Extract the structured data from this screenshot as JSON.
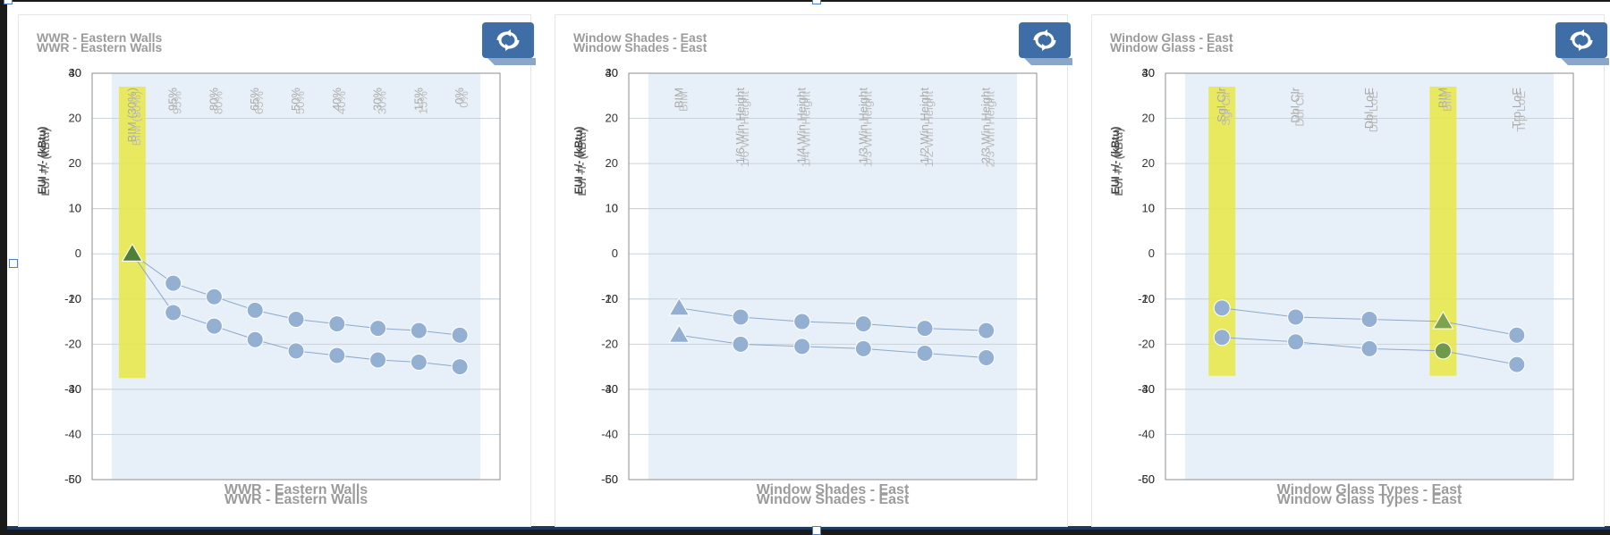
{
  "colors": {
    "plot_band": "#e7f0f8",
    "point": "#93b0d3",
    "highlight": "#e9e84f",
    "baseline_marker": "#4f7f3b",
    "button": "#3f6ea6"
  },
  "icons": {
    "panel_button": "refresh-cycle-icon"
  },
  "chart_data": [
    {
      "type": "scatter",
      "title": "WWR - Eastern Walls",
      "xlabel": "WWR - Eastern Walls",
      "ylabel": "EUI +/- (kBtu)",
      "ylim_left": [
        -50,
        40
      ],
      "ylim_right": [
        -60,
        30
      ],
      "yticks_left": [
        40,
        20,
        10,
        0,
        -10,
        -20,
        -30,
        -40,
        -50
      ],
      "yticks_right": [
        30,
        20,
        0,
        -20,
        -40,
        -60
      ],
      "categories": [
        "BIM (30%)",
        "95%",
        "80%",
        "65%",
        "50%",
        "40%",
        "30%",
        "15%",
        "0%"
      ],
      "highlight_categories": [
        0
      ],
      "series": [
        {
          "values": [
            0,
            -6.5,
            -9.5,
            -12.5,
            -14.5,
            -15.5,
            -16.5,
            -17,
            -18
          ]
        },
        {
          "values": [
            0,
            -13,
            -16,
            -19,
            -21.5,
            -22.5,
            -23.5,
            -24,
            -25
          ]
        }
      ]
    },
    {
      "type": "scatter",
      "title": "Window Shades - East",
      "xlabel": "Window Shades - East",
      "ylabel": "EUI +/- (kBtu)",
      "ylim_left": [
        -50,
        40
      ],
      "ylim_right": [
        -60,
        30
      ],
      "yticks_left": [
        40,
        20,
        10,
        0,
        -10,
        -20,
        -30,
        -40,
        -50
      ],
      "yticks_right": [
        30,
        20,
        0,
        -20,
        -40,
        -60
      ],
      "categories": [
        "BIM",
        "1/6 Win Height",
        "1/4 Win Height",
        "1/3 Win Height",
        "1/2 Win Height",
        "2/3 Win Height"
      ],
      "highlight_categories": [],
      "series": [
        {
          "values": [
            -12,
            -14,
            -15,
            -15.5,
            -16.5,
            -17
          ]
        },
        {
          "values": [
            -18,
            -20,
            -20.5,
            -21,
            -22,
            -23
          ]
        }
      ]
    },
    {
      "type": "scatter",
      "title": "Window Glass - East",
      "xlabel": "Window Glass Types - East",
      "ylabel": "EUI +/- (kBtu)",
      "ylim_left": [
        -50,
        40
      ],
      "ylim_right": [
        -60,
        30
      ],
      "yticks_left": [
        40,
        20,
        10,
        0,
        -10,
        -20,
        -30,
        -40,
        -50
      ],
      "yticks_right": [
        30,
        20,
        0,
        -20,
        -40,
        -60
      ],
      "categories": [
        "Sgl Clr",
        "Dbl Clr",
        "Dbl LoE",
        "BIM",
        "Trp LoE"
      ],
      "highlight_categories": [
        0,
        3
      ],
      "series": [
        {
          "values": [
            -12,
            -14,
            -14.5,
            -15,
            -18
          ]
        },
        {
          "values": [
            -18.5,
            -19.5,
            -21,
            -21.5,
            -24.5
          ]
        }
      ]
    }
  ]
}
